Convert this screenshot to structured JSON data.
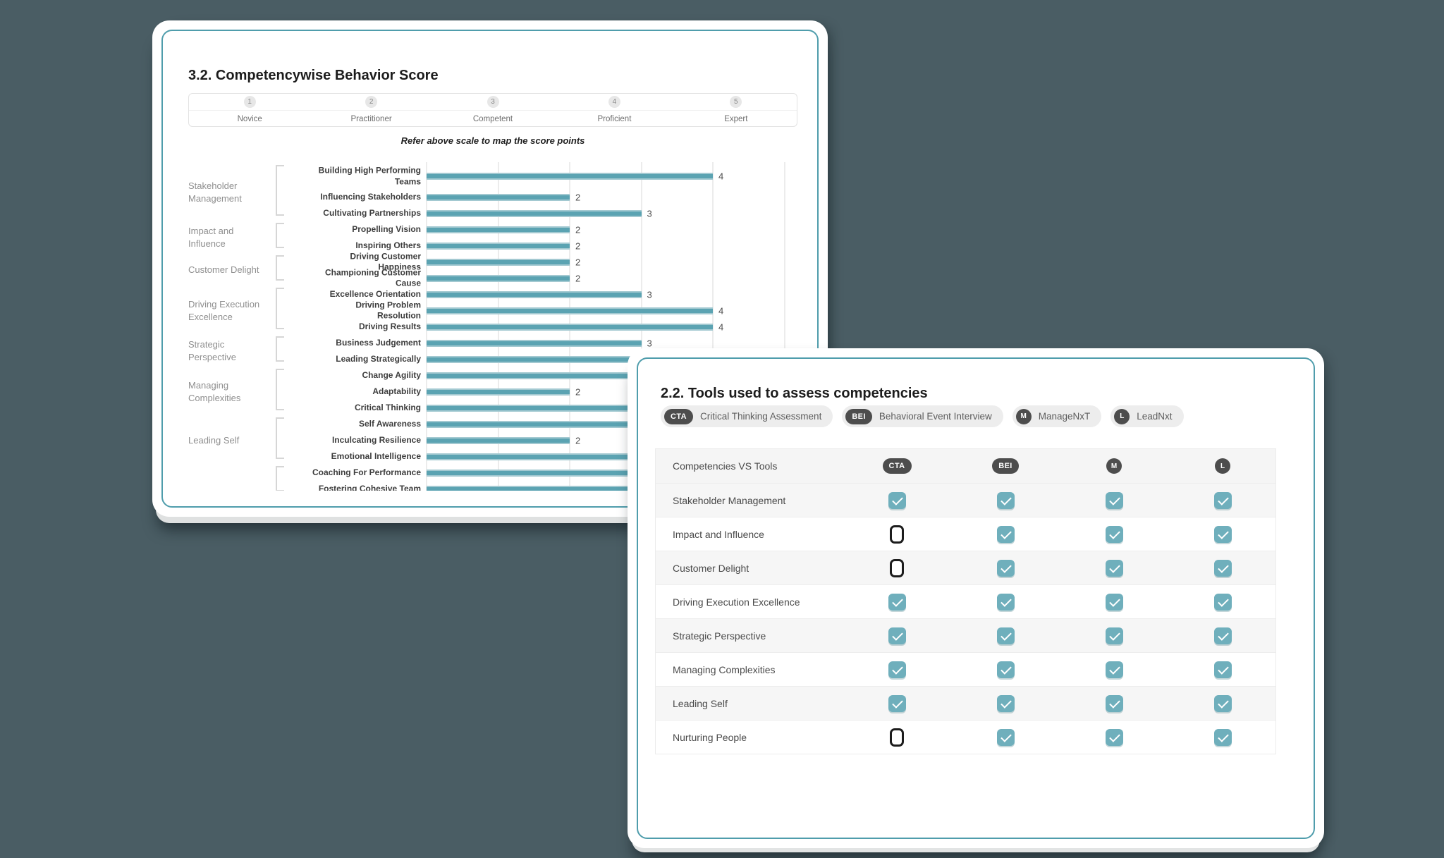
{
  "colors": {
    "page_background": "#4a5d64",
    "card_border_accent": "#4f9dac",
    "bar_fill": "#5ba3b2",
    "checkbox_checked": "#6fafbc",
    "badge_dark": "#4d4d4d"
  },
  "behavior_card": {
    "title": "3.2. Competencywise Behavior Score",
    "scale": {
      "levels": [
        {
          "number": "1",
          "label": "Novice"
        },
        {
          "number": "2",
          "label": "Practitioner"
        },
        {
          "number": "3",
          "label": "Competent"
        },
        {
          "number": "4",
          "label": "Proficient"
        },
        {
          "number": "5",
          "label": "Expert"
        }
      ],
      "caption": "Refer above scale to map the score points"
    }
  },
  "chart_data": {
    "type": "bar",
    "orientation": "horizontal",
    "xlim": [
      0,
      5
    ],
    "gridlines": [
      0,
      1,
      2,
      3,
      4,
      5
    ],
    "grid": true,
    "groups": [
      {
        "category": "Stakeholder Management",
        "items": [
          {
            "label": "Building High Performing Teams",
            "value": 4,
            "value_visible": true,
            "two_line": true
          },
          {
            "label": "Influencing Stakeholders",
            "value": 2,
            "value_visible": true
          },
          {
            "label": "Cultivating Partnerships",
            "value": 3,
            "value_visible": true
          }
        ]
      },
      {
        "category": "Impact and Influence",
        "items": [
          {
            "label": "Propelling Vision",
            "value": 2,
            "value_visible": true
          },
          {
            "label": "Inspiring Others",
            "value": 2,
            "value_visible": true
          }
        ]
      },
      {
        "category": "Customer Delight",
        "items": [
          {
            "label": "Driving Customer Happiness",
            "value": 2,
            "value_visible": true
          },
          {
            "label": "Championing Customer Cause",
            "value": 2,
            "value_visible": true
          }
        ]
      },
      {
        "category": "Driving Execution Excellence",
        "items": [
          {
            "label": "Excellence Orientation",
            "value": 3,
            "value_visible": true
          },
          {
            "label": "Driving Problem Resolution",
            "value": 4,
            "value_visible": true
          },
          {
            "label": "Driving Results",
            "value": 4,
            "value_visible": true
          }
        ]
      },
      {
        "category": "Strategic Perspective",
        "items": [
          {
            "label": "Business Judgement",
            "value": 3,
            "value_visible": true
          },
          {
            "label": "Leading Strategically",
            "value": 3,
            "value_visible": false
          }
        ]
      },
      {
        "category": "Managing Complexities",
        "items": [
          {
            "label": "Change Agility",
            "value": 3,
            "value_visible": false
          },
          {
            "label": "Adaptability",
            "value": 2,
            "value_visible": true
          },
          {
            "label": "Critical Thinking",
            "value": 3,
            "value_visible": false
          }
        ]
      },
      {
        "category": "Leading Self",
        "items": [
          {
            "label": "Self Awareness",
            "value": 3,
            "value_visible": false
          },
          {
            "label": "Inculcating Resilience",
            "value": 2,
            "value_visible": true
          },
          {
            "label": "Emotional Intelligence",
            "value": 3,
            "value_visible": false
          }
        ]
      },
      {
        "category": "",
        "items": [
          {
            "label": "Coaching For Performance",
            "value": 3,
            "value_visible": false
          },
          {
            "label": "Fostering Cohesive Team",
            "value": 3,
            "value_visible": false
          }
        ]
      }
    ]
  },
  "tools_card": {
    "title": "2.2. Tools used to assess competencies",
    "legend": [
      {
        "abbr": "CTA",
        "name": "Critical Thinking Assessment",
        "badge_shape": "pill"
      },
      {
        "abbr": "BEI",
        "name": "Behavioral Event Interview",
        "badge_shape": "pill"
      },
      {
        "abbr": "M",
        "name": "ManageNxT",
        "badge_shape": "circle"
      },
      {
        "abbr": "L",
        "name": "LeadNxt",
        "badge_shape": "circle"
      }
    ],
    "table": {
      "header": "Competencies VS Tools",
      "columns": [
        {
          "abbr": "CTA",
          "badge_shape": "pill"
        },
        {
          "abbr": "BEI",
          "badge_shape": "pill"
        },
        {
          "abbr": "M",
          "badge_shape": "circle"
        },
        {
          "abbr": "L",
          "badge_shape": "circle"
        }
      ],
      "rows": [
        {
          "label": "Stakeholder Management",
          "checks": [
            true,
            true,
            true,
            true
          ]
        },
        {
          "label": "Impact and Influence",
          "checks": [
            false,
            true,
            true,
            true
          ]
        },
        {
          "label": "Customer Delight",
          "checks": [
            false,
            true,
            true,
            true
          ]
        },
        {
          "label": "Driving Execution Excellence",
          "checks": [
            true,
            true,
            true,
            true
          ]
        },
        {
          "label": "Strategic Perspective",
          "checks": [
            true,
            true,
            true,
            true
          ]
        },
        {
          "label": "Managing Complexities",
          "checks": [
            true,
            true,
            true,
            true
          ]
        },
        {
          "label": "Leading Self",
          "checks": [
            true,
            true,
            true,
            true
          ]
        },
        {
          "label": "Nurturing People",
          "checks": [
            false,
            true,
            true,
            true
          ]
        }
      ]
    }
  }
}
